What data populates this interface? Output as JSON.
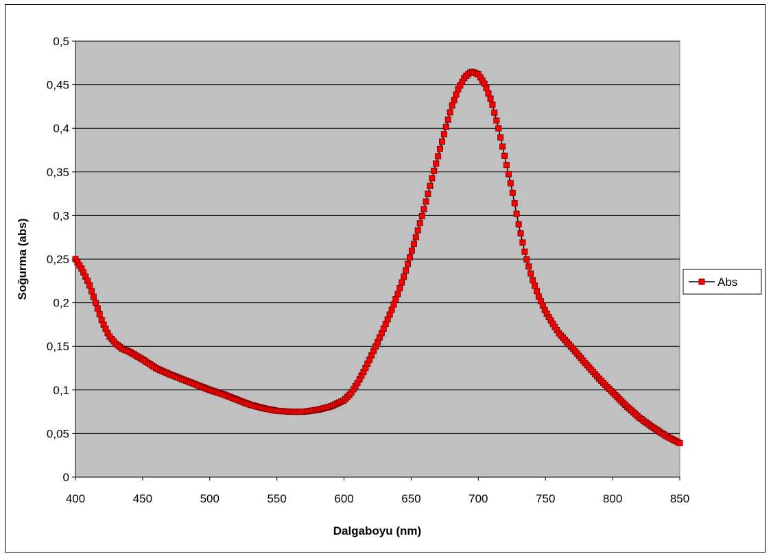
{
  "chart_data": {
    "type": "line",
    "xlabel": "Dalgaboyu (nm)",
    "ylabel": "Soğurma (abs)",
    "xlim": [
      400,
      850
    ],
    "ylim": [
      0,
      0.5
    ],
    "x_ticks": [
      "400",
      "450",
      "500",
      "550",
      "600",
      "650",
      "700",
      "750",
      "800",
      "850"
    ],
    "y_ticks": [
      "0",
      "0,05",
      "0,1",
      "0,15",
      "0,2",
      "0,25",
      "0,3",
      "0,35",
      "0,4",
      "0,45",
      "0,5"
    ],
    "grid": true,
    "legend_position": "right",
    "colors": {
      "plot_bg": "#c0c0c0",
      "marker_fill": "#ff0000",
      "marker_edge": "#800000",
      "line": "#000000"
    },
    "series": [
      {
        "name": "Abs",
        "x": [
          400,
          405,
          410,
          415,
          420,
          425,
          430,
          435,
          440,
          450,
          460,
          470,
          480,
          490,
          500,
          510,
          520,
          530,
          540,
          550,
          560,
          570,
          580,
          590,
          600,
          605,
          610,
          615,
          620,
          625,
          630,
          635,
          640,
          645,
          650,
          655,
          660,
          665,
          670,
          675,
          680,
          685,
          690,
          695,
          700,
          705,
          710,
          715,
          720,
          725,
          730,
          735,
          740,
          745,
          750,
          755,
          760,
          770,
          780,
          790,
          800,
          810,
          820,
          830,
          840,
          850
        ],
        "y": [
          0.25,
          0.238,
          0.222,
          0.2,
          0.178,
          0.162,
          0.153,
          0.147,
          0.144,
          0.135,
          0.125,
          0.118,
          0.112,
          0.106,
          0.1,
          0.095,
          0.089,
          0.083,
          0.079,
          0.076,
          0.075,
          0.075,
          0.077,
          0.081,
          0.088,
          0.096,
          0.108,
          0.122,
          0.138,
          0.155,
          0.172,
          0.19,
          0.21,
          0.232,
          0.257,
          0.283,
          0.31,
          0.34,
          0.368,
          0.396,
          0.424,
          0.445,
          0.459,
          0.465,
          0.462,
          0.45,
          0.43,
          0.4,
          0.365,
          0.33,
          0.29,
          0.255,
          0.228,
          0.207,
          0.19,
          0.177,
          0.165,
          0.148,
          0.13,
          0.113,
          0.097,
          0.082,
          0.068,
          0.057,
          0.047,
          0.039
        ]
      }
    ]
  }
}
